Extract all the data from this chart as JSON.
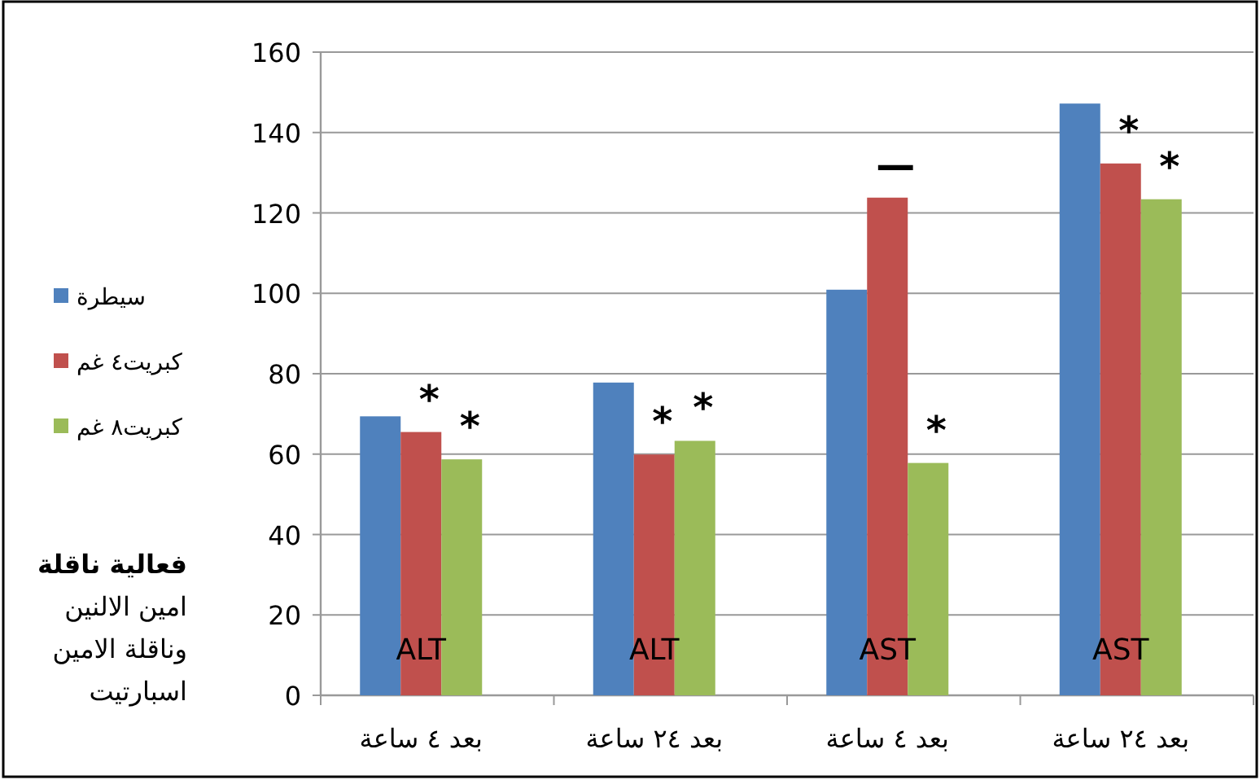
{
  "chart_data": {
    "type": "bar",
    "ylabel": "فعالية ناقلة\nامين الالنين\nوناقلة الامين\nاسبارتيت",
    "categories": [
      "بعد ٤ ساعة",
      "بعد ٢٤ ساعة",
      "بعد ٤ ساعة",
      "بعد ٢٤ ساعة"
    ],
    "series": [
      {
        "name": "سيطرة",
        "color": "#4f81bd",
        "values": [
          69.4,
          77.8,
          100.9,
          147.2
        ]
      },
      {
        "name": "كبريت٤ غم",
        "color": "#c0504d",
        "values": [
          65.5,
          59.9,
          123.8,
          132.3
        ]
      },
      {
        "name": "كبريت٨ غم",
        "color": "#9bbb59",
        "values": [
          58.7,
          63.3,
          57.8,
          123.4
        ]
      }
    ],
    "ylim": [
      0,
      160
    ],
    "yticks": [
      0,
      20,
      40,
      60,
      80,
      100,
      120,
      140,
      160
    ],
    "grid": "y",
    "legend": "left",
    "annotations": [
      "ALT",
      "*",
      "*",
      "ALT",
      "*",
      "*",
      "AST",
      "—",
      "*",
      "AST",
      "*",
      "*"
    ]
  }
}
